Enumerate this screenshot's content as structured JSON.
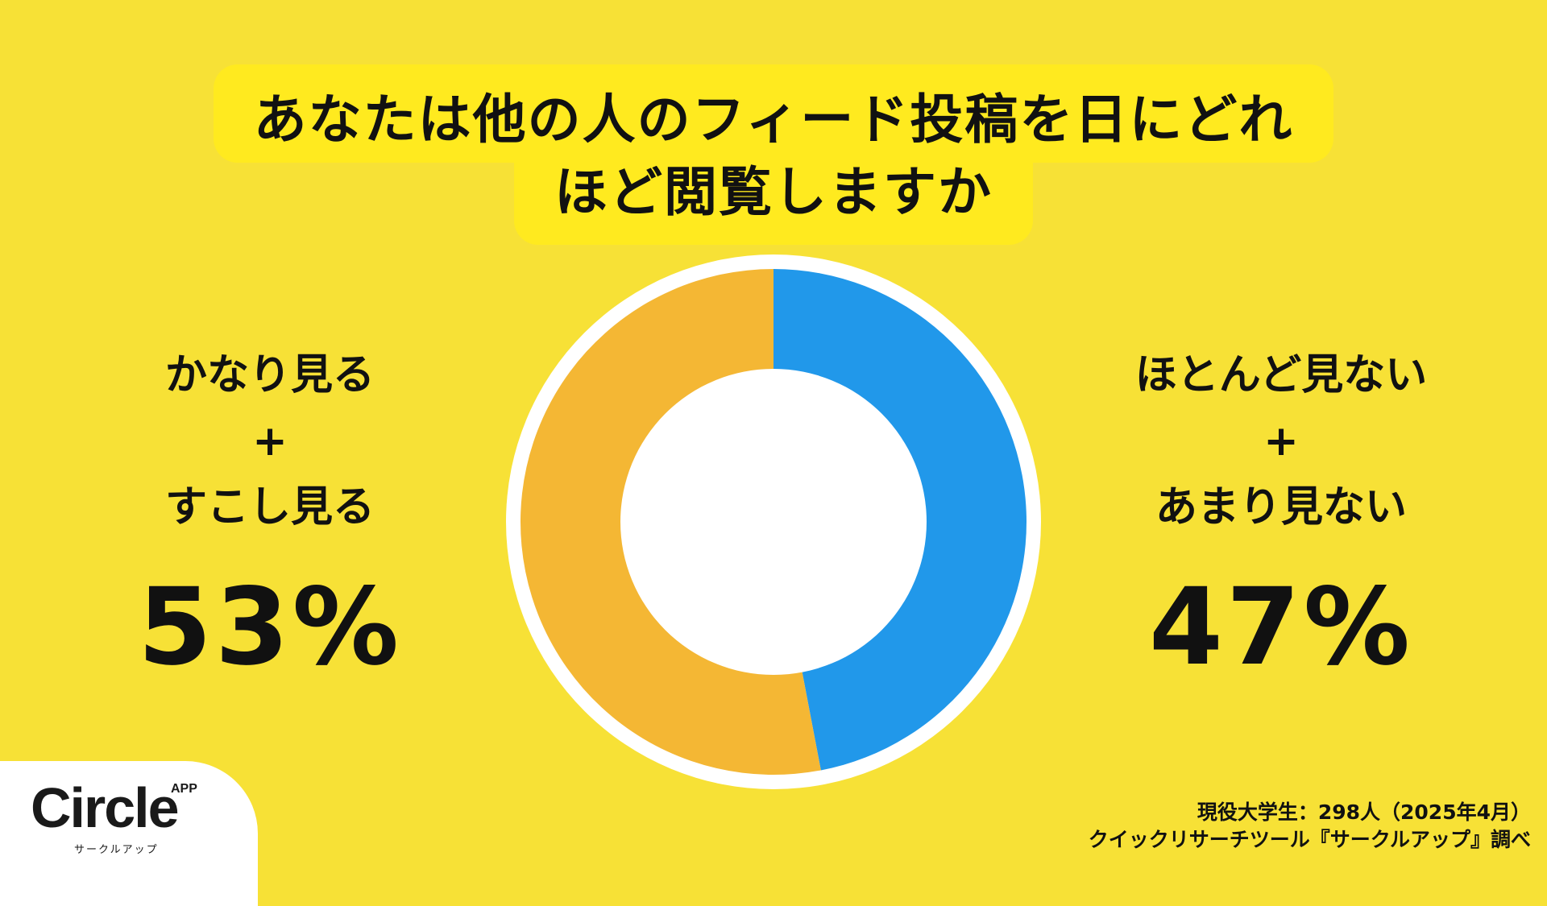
{
  "title": {
    "line1": "あなたは他の人のフィード投稿を日にどれ",
    "line2": "ほど閲覧しますか"
  },
  "left_group": {
    "line1": "かなり見る",
    "plus": "+",
    "line2": "すこし見る",
    "percent": "53%"
  },
  "right_group": {
    "line1": "ほとんど見ない",
    "plus": "+",
    "line2": "あまり見ない",
    "percent": "47%"
  },
  "chart_data": {
    "type": "pie",
    "donut": true,
    "categories": [
      "ほとんど見ない+あまり見ない",
      "かなり見る+すこし見る"
    ],
    "values": [
      47,
      53
    ],
    "unit": "%",
    "colors": [
      "#2198ea",
      "#f4b734"
    ],
    "start": "12 o'clock, clockwise"
  },
  "logo": {
    "main": "Circle",
    "app": "APP",
    "sub": "サークルアップ"
  },
  "footnote": {
    "line1": "現役大学生：298人（2025年4月）",
    "line2": "クイックリサーチツール『サークルアップ』調べ"
  },
  "colors": {
    "background": "#f7e136",
    "title_highlight": "#ffea1f",
    "text": "#111111"
  }
}
